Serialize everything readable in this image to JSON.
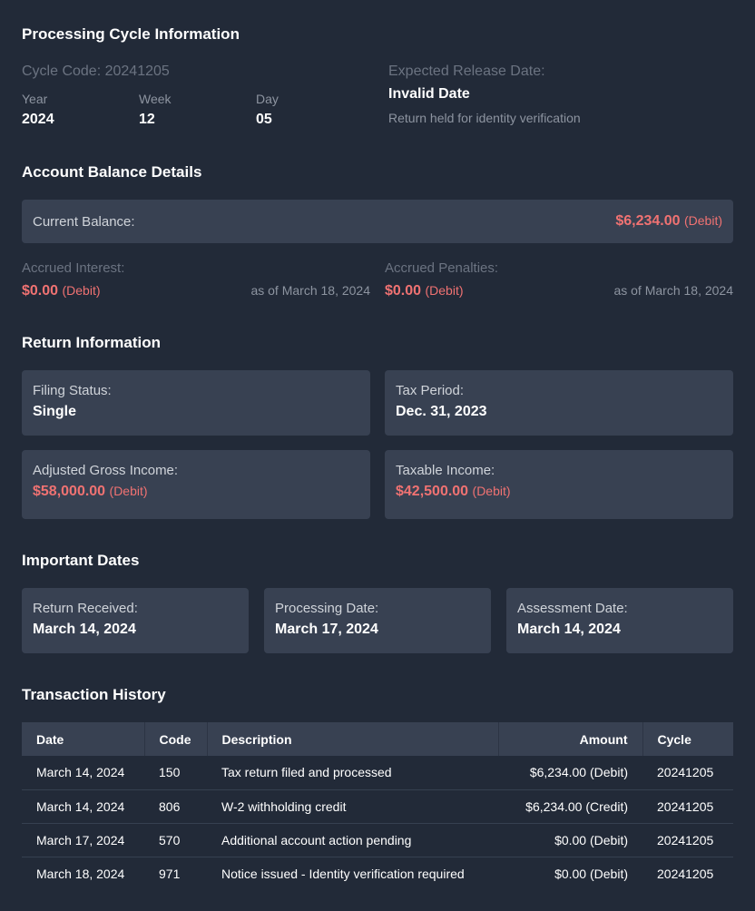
{
  "cycle": {
    "title": "Processing Cycle Information",
    "code_label": "Cycle Code: 20241205",
    "year_label": "Year",
    "year": "2024",
    "week_label": "Week",
    "week": "12",
    "day_label": "Day",
    "day": "05",
    "release_label": "Expected Release Date:",
    "release_value": "Invalid Date",
    "release_note": "Return held for identity verification"
  },
  "balance": {
    "title": "Account Balance Details",
    "current_label": "Current Balance:",
    "current_amount": "$6,234.00",
    "current_tag": "(Debit)",
    "interest_label": "Accrued Interest:",
    "interest_amount": "$0.00",
    "interest_tag": "(Debit)",
    "interest_asof": "as of March 18, 2024",
    "penalties_label": "Accrued Penalties:",
    "penalties_amount": "$0.00",
    "penalties_tag": "(Debit)",
    "penalties_asof": "as of March 18, 2024"
  },
  "return_info": {
    "title": "Return Information",
    "filing_label": "Filing Status:",
    "filing_value": "Single",
    "period_label": "Tax Period:",
    "period_value": "Dec. 31, 2023",
    "agi_label": "Adjusted Gross Income:",
    "agi_amount": "$58,000.00",
    "agi_tag": "(Debit)",
    "taxable_label": "Taxable Income:",
    "taxable_amount": "$42,500.00",
    "taxable_tag": "(Debit)"
  },
  "dates": {
    "title": "Important Dates",
    "received_label": "Return Received:",
    "received_value": "March 14, 2024",
    "processing_label": "Processing Date:",
    "processing_value": "March 17, 2024",
    "assessment_label": "Assessment Date:",
    "assessment_value": "March 14, 2024"
  },
  "transactions": {
    "title": "Transaction History",
    "headers": [
      "Date",
      "Code",
      "Description",
      "Amount",
      "Cycle"
    ],
    "rows": [
      {
        "date": "March 14, 2024",
        "code": "150",
        "description": "Tax return filed and processed",
        "amount": "$6,234.00 (Debit)",
        "cycle": "20241205"
      },
      {
        "date": "March 14, 2024",
        "code": "806",
        "description": "W-2 withholding credit",
        "amount": "$6,234.00 (Credit)",
        "cycle": "20241205"
      },
      {
        "date": "March 17, 2024",
        "code": "570",
        "description": "Additional account action pending",
        "amount": "$0.00 (Debit)",
        "cycle": "20241205"
      },
      {
        "date": "March 18, 2024",
        "code": "971",
        "description": "Notice issued - Identity verification required",
        "amount": "$0.00 (Debit)",
        "cycle": "20241205"
      }
    ]
  },
  "colors": {
    "background": "#222a38",
    "card": "#384152",
    "debit": "#f07272",
    "credit": "#4ade80"
  }
}
